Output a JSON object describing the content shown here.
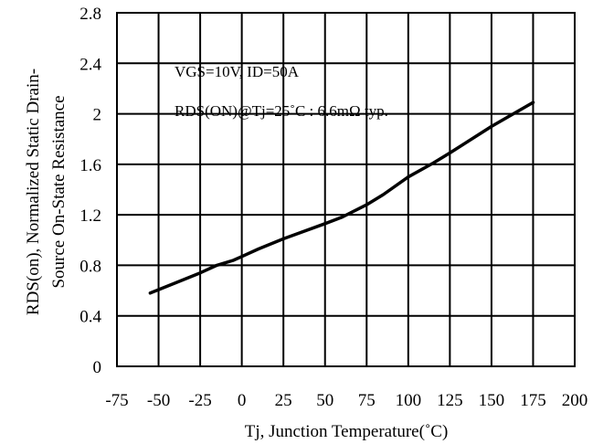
{
  "chart_data": {
    "type": "line",
    "xlabel": "Tj, Junction Temperature(˚C)",
    "ylabel_line1": "RDS(on), Normalized Static Drain-",
    "ylabel_line2": "Source On-State Resistance",
    "xlim": [
      -75,
      200
    ],
    "ylim": [
      0,
      2.8
    ],
    "x_ticks": [
      -75,
      -50,
      -25,
      0,
      25,
      50,
      75,
      100,
      125,
      150,
      175,
      200
    ],
    "y_ticks": [
      0,
      0.4,
      0.8,
      1.2,
      1.6,
      2,
      2.4,
      2.8
    ],
    "x_tick_labels": [
      "-75",
      "-50",
      "-25",
      "0",
      "25",
      "50",
      "75",
      "100",
      "125",
      "150",
      "175",
      "200"
    ],
    "y_tick_labels": [
      "0",
      "0.4",
      "0.8",
      "1.2",
      "1.6",
      "2",
      "2.4",
      "2.8"
    ],
    "grid": true,
    "annotations": [
      "VGS=10V, ID=50A",
      "RDS(ON)@Tj=25˚C : 6.6mΩ typ."
    ],
    "series": [
      {
        "x": [
          -55,
          -40,
          -25,
          -15,
          -5,
          0,
          10,
          25,
          50,
          60,
          75,
          85,
          100,
          115,
          125,
          150,
          175
        ],
        "y": [
          0.58,
          0.66,
          0.74,
          0.8,
          0.84,
          0.87,
          0.93,
          1.01,
          1.13,
          1.18,
          1.28,
          1.36,
          1.5,
          1.61,
          1.69,
          1.9,
          2.09
        ]
      }
    ],
    "line_color": "#000000"
  }
}
